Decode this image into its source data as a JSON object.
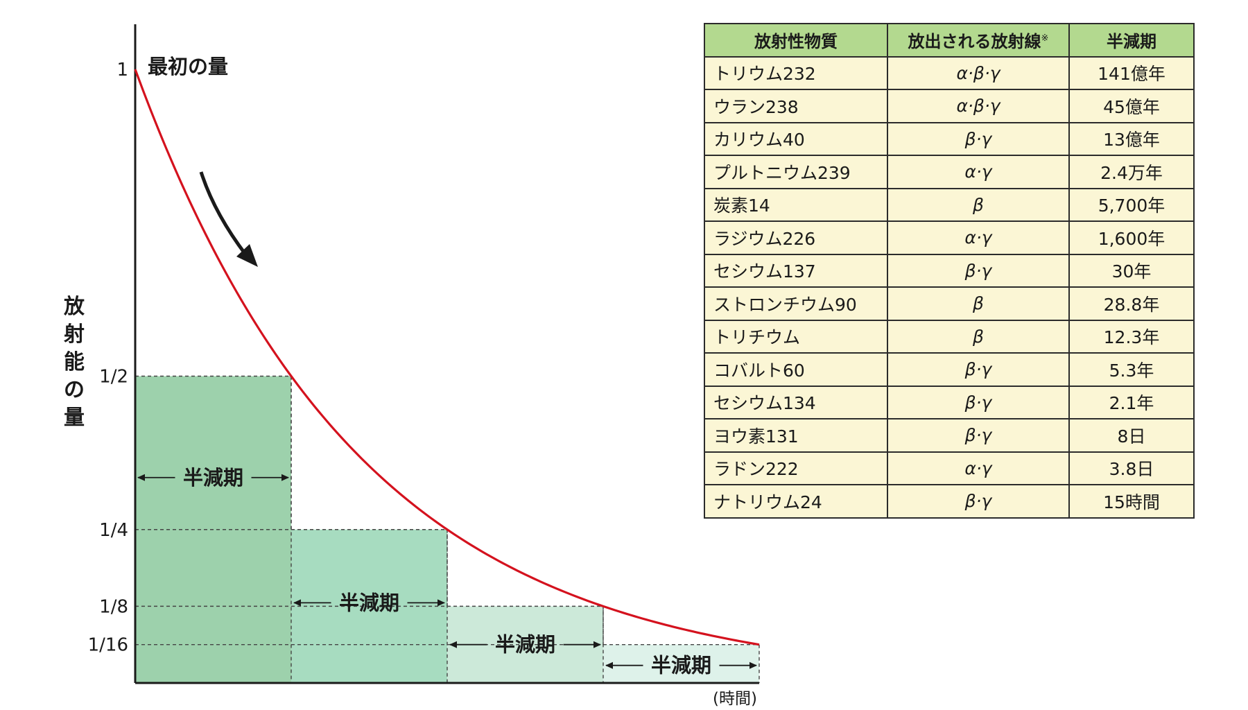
{
  "chart_data": {
    "type": "line",
    "title": "",
    "xlabel": "(時間)",
    "ylabel": "放射能の量",
    "ylim": [
      0,
      1
    ],
    "y_ticks": [
      {
        "value": 1,
        "label": "1"
      },
      {
        "value": 0.5,
        "label": "1/2"
      },
      {
        "value": 0.25,
        "label": "1/4"
      },
      {
        "value": 0.125,
        "label": "1/8"
      },
      {
        "value": 0.0625,
        "label": "1/16"
      }
    ],
    "annotation_start": "最初の量",
    "half_life_label": "半減期",
    "x_half_lives": [
      0,
      1,
      2,
      3,
      4
    ],
    "series": [
      {
        "x": [
          0,
          0.25,
          0.5,
          0.75,
          1,
          1.5,
          2,
          2.5,
          3,
          3.5,
          4
        ],
        "values": [
          1,
          0.841,
          0.707,
          0.595,
          0.5,
          0.354,
          0.25,
          0.177,
          0.125,
          0.088,
          0.0625
        ]
      }
    ],
    "colors": {
      "curve": "#d4121e",
      "fill_1": "#9dd1ac",
      "fill_2": "#a7dcc0",
      "fill_3": "#cce9d9",
      "fill_4": "#def2ea"
    }
  },
  "table": {
    "headers": [
      "放射性物質",
      "放出される放射線",
      "半減期"
    ],
    "header_mark": "※",
    "rows": [
      [
        "トリウム232",
        "α·β·γ",
        "141億年"
      ],
      [
        "ウラン238",
        "α·β·γ",
        "45億年"
      ],
      [
        "カリウム40",
        "β·γ",
        "13億年"
      ],
      [
        "プルトニウム239",
        "α·γ",
        "2.4万年"
      ],
      [
        "炭素14",
        "β",
        "5,700年"
      ],
      [
        "ラジウム226",
        "α·γ",
        "1,600年"
      ],
      [
        "セシウム137",
        "β·γ",
        "30年"
      ],
      [
        "ストロンチウム90",
        "β",
        "28.8年"
      ],
      [
        "トリチウム",
        "β",
        "12.3年"
      ],
      [
        "コバルト60",
        "β·γ",
        "5.3年"
      ],
      [
        "セシウム134",
        "β·γ",
        "2.1年"
      ],
      [
        "ヨウ素131",
        "β·γ",
        "8日"
      ],
      [
        "ラドン222",
        "α·γ",
        "3.8日"
      ],
      [
        "ナトリウム24",
        "β·γ",
        "15時間"
      ]
    ]
  }
}
